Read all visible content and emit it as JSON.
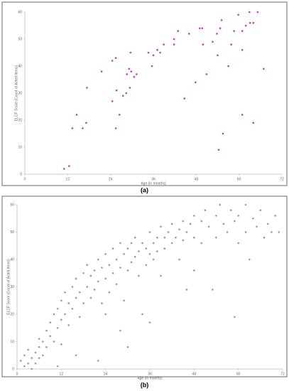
{
  "chart_data": [
    {
      "type": "scatter",
      "caption": "(a)",
      "xlabel": "Age (in months)",
      "ylabel": "ELCF Score (Count of Acted Items)",
      "color": "#cc33cc",
      "xlim": [
        0,
        72
      ],
      "xticks": [
        0,
        12,
        24,
        36,
        48,
        60,
        72
      ],
      "ylim": [
        0,
        60
      ],
      "yticks": [
        0,
        10,
        20,
        30,
        40,
        50,
        60
      ],
      "x": [
        11,
        12.4,
        13.3,
        14.5,
        16.2,
        17.2,
        17.4,
        21.5,
        24.5,
        24.5,
        25.5,
        25.7,
        25.5,
        26.5,
        27.5,
        28.4,
        28.6,
        29.2,
        29.4,
        29.6,
        29.8,
        30.6,
        31.3,
        34.6,
        35.6,
        36,
        37.1,
        37.9,
        38.9,
        41.8,
        41.8,
        42.9,
        44.7,
        46,
        47.8,
        49,
        49.7,
        49.9,
        50.9,
        52.6,
        53.8,
        54,
        54.3,
        54.7,
        55.1,
        55.5,
        57,
        57.8,
        58.6,
        59.8,
        60.9,
        60.9,
        60.9,
        61.9,
        62.9,
        63.1,
        64,
        64,
        65.2,
        66.9
      ],
      "values": [
        2,
        3,
        17,
        22,
        17,
        19,
        32,
        38,
        27,
        42,
        43,
        31,
        17,
        22,
        29,
        30,
        37,
        39,
        32,
        45,
        38,
        36,
        37,
        45,
        40,
        44,
        46,
        45,
        48,
        50,
        48,
        53,
        28,
        52,
        34,
        54,
        54,
        48,
        37,
        49,
        52,
        44,
        9,
        54,
        57,
        15,
        40,
        48,
        53,
        59,
        53,
        46,
        22,
        55,
        60,
        56,
        56,
        19,
        60,
        39
      ]
    },
    {
      "type": "scatter",
      "caption": "(b)",
      "xlabel": "Age (in months)",
      "ylabel": "ELCF Score (Count of Acted Items)",
      "color": "#9a9a9a",
      "xlim": [
        0,
        72
      ],
      "xticks": [
        0,
        12,
        24,
        36,
        48,
        60,
        72
      ],
      "ylim": [
        0,
        60
      ],
      "yticks": [
        0,
        10,
        20,
        30,
        40,
        50,
        60
      ],
      "x": [
        1,
        2,
        2,
        3,
        3,
        4,
        4,
        5,
        5,
        6,
        6,
        6,
        7,
        7,
        8,
        8,
        9,
        9,
        10,
        10,
        11,
        11,
        12,
        12,
        12,
        11,
        13,
        13,
        14,
        14,
        15,
        15,
        16,
        16,
        17,
        17,
        18,
        18,
        16,
        19,
        19,
        20,
        20,
        21,
        21,
        22,
        22,
        23,
        23,
        24,
        24,
        24,
        22,
        25,
        25,
        26,
        26,
        27,
        27,
        28,
        28,
        29,
        29,
        30,
        30,
        28,
        30,
        31,
        31,
        32,
        32,
        33,
        33,
        34,
        34,
        35,
        35,
        36,
        36,
        36,
        37,
        37,
        38,
        38,
        39,
        39,
        40,
        40,
        41,
        42,
        42,
        43,
        44,
        44,
        45,
        45,
        46,
        46,
        47,
        48,
        48,
        48,
        50,
        50,
        51,
        52,
        53,
        54,
        54,
        55,
        56,
        57,
        58,
        59,
        59,
        60,
        60,
        62,
        62,
        63,
        64,
        65,
        66,
        67,
        68,
        69,
        70,
        71
      ],
      "values": [
        3,
        1,
        5,
        2,
        7,
        4,
        0,
        6,
        2,
        8,
        4,
        11,
        5,
        10,
        14,
        8,
        12,
        17,
        10,
        20,
        15,
        22,
        18,
        25,
        9,
        1,
        20,
        28,
        16,
        24,
        30,
        22,
        26,
        33,
        19,
        28,
        35,
        24,
        5,
        30,
        38,
        26,
        34,
        36,
        29,
        40,
        32,
        24,
        37,
        42,
        33,
        20,
        3,
        38,
        28,
        44,
        35,
        40,
        31,
        46,
        37,
        42,
        25,
        44,
        36,
        14,
        8,
        46,
        39,
        41,
        48,
        43,
        34,
        46,
        20,
        44,
        38,
        50,
        42,
        17,
        46,
        40,
        48,
        43,
        52,
        34,
        48,
        44,
        50,
        46,
        53,
        48,
        51,
        40,
        54,
        47,
        50,
        29,
        53,
        56,
        48,
        36,
        54,
        46,
        58,
        52,
        29,
        56,
        48,
        60,
        53,
        50,
        58,
        19,
        54,
        56,
        46,
        60,
        50,
        40,
        55,
        52,
        58,
        48,
        53,
        50,
        56,
        50
      ]
    }
  ]
}
